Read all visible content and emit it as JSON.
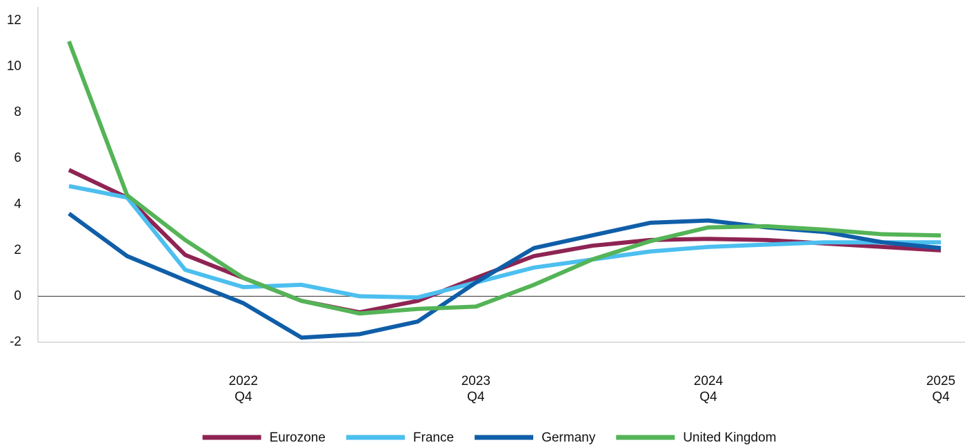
{
  "chart_data": {
    "type": "line",
    "categories": [
      null,
      null,
      null,
      "2022\nQ4",
      null,
      null,
      null,
      "2023\nQ4",
      null,
      null,
      null,
      "2024\nQ4",
      null,
      null,
      null,
      "2025\nQ4"
    ],
    "series": [
      {
        "name": "Eurozone",
        "color": "#8e2453",
        "values": [
          5.5,
          4.3,
          1.8,
          0.8,
          -0.2,
          -0.7,
          -0.2,
          0.8,
          1.75,
          2.2,
          2.45,
          2.5,
          2.45,
          2.3,
          2.15,
          2.0
        ]
      },
      {
        "name": "France",
        "color": "#4cbfef",
        "values": [
          4.8,
          4.3,
          1.15,
          0.4,
          0.5,
          0.0,
          -0.05,
          0.6,
          1.25,
          1.6,
          1.95,
          2.15,
          2.25,
          2.35,
          2.35,
          2.35
        ]
      },
      {
        "name": "Germany",
        "color": "#105ea8",
        "values": [
          3.6,
          1.75,
          0.7,
          -0.3,
          -1.8,
          -1.65,
          -1.1,
          0.6,
          2.1,
          2.65,
          3.2,
          3.3,
          3.0,
          2.8,
          2.35,
          2.1
        ]
      },
      {
        "name": "United Kingdom",
        "color": "#54b457",
        "values": [
          11.1,
          4.4,
          2.45,
          0.8,
          -0.2,
          -0.75,
          -0.55,
          -0.45,
          0.5,
          1.6,
          2.4,
          3.0,
          3.05,
          2.9,
          2.7,
          2.65
        ]
      }
    ],
    "ylim": [
      -2,
      12
    ],
    "yticks": [
      -2,
      0,
      2,
      4,
      6,
      8,
      10,
      12
    ],
    "grid": false,
    "legend": "bottom"
  }
}
